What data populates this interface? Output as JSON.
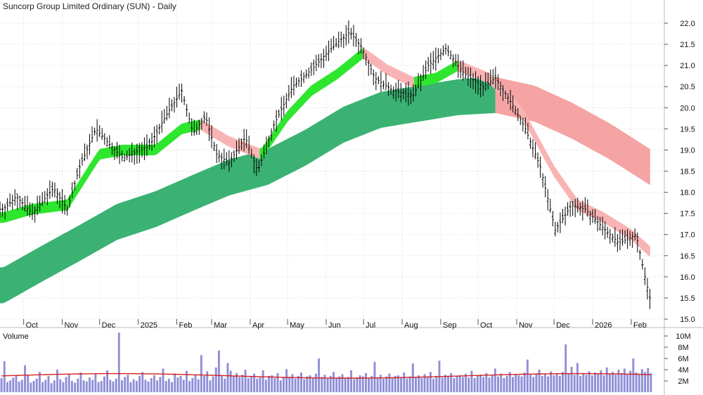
{
  "chart_data": {
    "type": "line",
    "title": "Suncorp Group Limited Ordinary (SUN) - Daily",
    "price_axis": {
      "ticks": [
        "22.0",
        "21.5",
        "21.0",
        "20.5",
        "20.0",
        "19.5",
        "19.0",
        "18.5",
        "18.0",
        "17.5",
        "17.0",
        "16.5",
        "16.0",
        "15.5",
        "15.0"
      ],
      "ylim": [
        15.0,
        22.0
      ]
    },
    "x_tick_labels": [
      "Oct",
      "Nov",
      "Dec",
      "2025",
      "Feb",
      "Mar",
      "Apr",
      "May",
      "Jun",
      "Jul",
      "Aug",
      "Sep",
      "Oct",
      "Nov",
      "Dec",
      "2026",
      "Feb"
    ],
    "volume_panel": {
      "label": "Volume",
      "ticks": [
        "10M",
        "8M",
        "6M",
        "4M",
        "2M"
      ],
      "ylim": [
        0,
        11
      ]
    },
    "series": [
      {
        "name": "",
        "color": "#000000",
        "x": [
          "2024-09-15",
          "2024-09-25",
          "2024-10-08",
          "2024-10-25",
          "2024-11-05",
          "2024-11-15",
          "2024-11-28",
          "2024-12-10",
          "2024-12-20",
          "2025-01-10",
          "2025-01-25",
          "2025-02-05",
          "2025-02-14",
          "2025-02-24",
          "2025-03-05",
          "2025-03-15",
          "2025-03-28",
          "2025-04-07",
          "2025-04-20",
          "2025-05-05",
          "2025-05-20",
          "2025-06-05",
          "2025-06-20",
          "2025-06-30",
          "2025-07-10",
          "2025-07-25",
          "2025-08-10",
          "2025-08-22",
          "2025-09-05",
          "2025-09-20",
          "2025-10-05",
          "2025-10-15",
          "2025-10-28",
          "2025-11-08",
          "2025-11-20",
          "2025-12-02",
          "2025-12-15",
          "2025-12-26",
          "2026-01-08",
          "2026-01-22",
          "2026-02-05",
          "2026-02-12",
          "2026-02-16"
        ],
        "values": [
          17.6,
          17.9,
          17.5,
          18.1,
          17.6,
          18.6,
          19.5,
          19.1,
          18.8,
          19.1,
          19.9,
          20.4,
          19.4,
          19.8,
          18.9,
          18.7,
          19.3,
          18.5,
          19.6,
          20.5,
          20.9,
          21.4,
          21.8,
          21.4,
          20.7,
          20.4,
          20.3,
          21.0,
          21.4,
          20.8,
          20.5,
          20.7,
          20.1,
          19.5,
          18.6,
          17.1,
          17.7,
          17.6,
          17.2,
          16.8,
          17.0,
          16.0,
          15.5
        ]
      },
      {
        "name": "",
        "color": "#30d030",
        "x": [
          "2024-09-15",
          "2024-10-08",
          "2024-11-05",
          "2024-12-01",
          "2024-12-20",
          "2025-01-15",
          "2025-02-05",
          "2025-02-20",
          "2025-03-15",
          "2025-04-10",
          "2025-05-01",
          "2025-05-20",
          "2025-06-10",
          "2025-07-01",
          "2025-07-20",
          "2025-08-10",
          "2025-08-28",
          "2025-09-15",
          "2025-10-10",
          "2025-11-05",
          "2025-12-01",
          "2025-12-20",
          "2026-01-10",
          "2026-02-01",
          "2026-02-16"
        ],
        "values": [
          17.4,
          17.6,
          17.7,
          18.9,
          19.0,
          19.0,
          19.5,
          19.6,
          19.2,
          18.9,
          19.8,
          20.4,
          20.8,
          21.3,
          20.9,
          20.6,
          20.7,
          21.0,
          20.7,
          19.9,
          18.5,
          17.7,
          17.4,
          17.0,
          16.6
        ]
      },
      {
        "name": "",
        "color": "#3bb273",
        "x": [
          "2024-09-15",
          "2024-10-15",
          "2024-11-15",
          "2024-12-15",
          "2025-01-15",
          "2025-02-15",
          "2025-03-15",
          "2025-04-15",
          "2025-05-15",
          "2025-06-15",
          "2025-07-15",
          "2025-08-15",
          "2025-09-15",
          "2025-10-15",
          "2025-11-15",
          "2025-12-15",
          "2026-01-15",
          "2026-02-16"
        ],
        "values": [
          15.8,
          16.3,
          16.8,
          17.3,
          17.6,
          18.0,
          18.35,
          18.6,
          19.05,
          19.6,
          19.95,
          20.1,
          20.25,
          20.3,
          20.1,
          19.7,
          19.2,
          18.6
        ]
      }
    ],
    "volume": [
      2.5,
      5.5,
      1.8,
      2.1,
      2.6,
      3.0,
      1.9,
      2.2,
      4.8,
      3.1,
      1.7,
      2.0,
      2.4,
      3.6,
      1.8,
      2.2,
      2.9,
      1.6,
      2.1,
      4.0,
      2.3,
      1.8,
      2.7,
      3.2,
      2.0,
      1.7,
      2.4,
      3.5,
      2.1,
      1.9,
      2.6,
      2.2,
      3.3,
      1.8,
      2.0,
      2.8,
      3.9,
      2.2,
      1.9,
      2.4,
      10.6,
      2.1,
      2.7,
      3.1,
      1.8,
      2.3,
      2.0,
      2.9,
      3.6,
      2.2,
      1.9,
      2.5,
      3.0,
      2.1,
      2.7,
      4.2,
      2.0,
      2.4,
      1.8,
      3.3,
      2.6,
      2.9,
      2.2,
      3.8,
      2.0,
      2.5,
      3.1,
      2.3,
      6.6,
      2.9,
      3.7,
      2.1,
      2.8,
      4.4,
      7.4,
      3.0,
      2.4,
      5.2,
      3.8,
      2.9,
      3.4,
      2.7,
      3.1,
      4.0,
      2.5,
      2.8,
      3.3,
      2.4,
      2.6,
      3.9,
      2.2,
      2.9,
      3.0,
      2.5,
      3.4,
      2.1,
      2.7,
      4.1,
      2.6,
      3.2,
      2.4,
      2.9,
      3.5,
      2.3,
      2.8,
      3.0,
      2.6,
      3.3,
      6.0,
      2.7,
      3.1,
      2.4,
      2.9,
      3.6,
      2.5,
      2.8,
      3.2,
      2.4,
      2.7,
      3.9,
      2.3,
      2.6,
      3.0,
      2.8,
      3.4,
      2.5,
      2.9,
      5.4,
      2.6,
      3.1,
      2.4,
      2.8,
      3.3,
      2.5,
      2.9,
      3.0,
      2.7,
      3.5,
      2.4,
      2.8,
      5.1,
      2.6,
      3.0,
      2.5,
      3.2,
      2.7,
      3.6,
      2.4,
      2.9,
      5.6,
      2.6,
      3.1,
      2.8,
      3.4,
      2.5,
      2.9,
      3.0,
      2.7,
      3.3,
      2.6,
      3.8,
      2.5,
      2.9,
      3.1,
      2.7,
      3.4,
      2.6,
      3.0,
      4.2,
      2.8,
      3.3,
      2.5,
      2.9,
      3.6,
      2.7,
      3.1,
      3.0,
      2.8,
      3.5,
      5.8,
      3.1,
      2.7,
      3.3,
      4.0,
      2.9,
      3.2,
      2.8,
      3.7,
      3.0,
      3.4,
      2.9,
      3.6,
      8.5,
      3.3,
      4.5,
      3.1,
      5.2,
      2.9,
      3.4,
      3.1,
      3.7,
      3.0,
      3.5,
      3.2,
      3.9,
      3.0,
      4.4,
      3.3,
      3.6,
      3.1,
      4.0,
      3.4,
      4.2,
      3.2,
      3.8,
      6.0,
      3.5,
      3.3,
      4.1,
      3.6,
      4.3,
      3.4
    ]
  }
}
